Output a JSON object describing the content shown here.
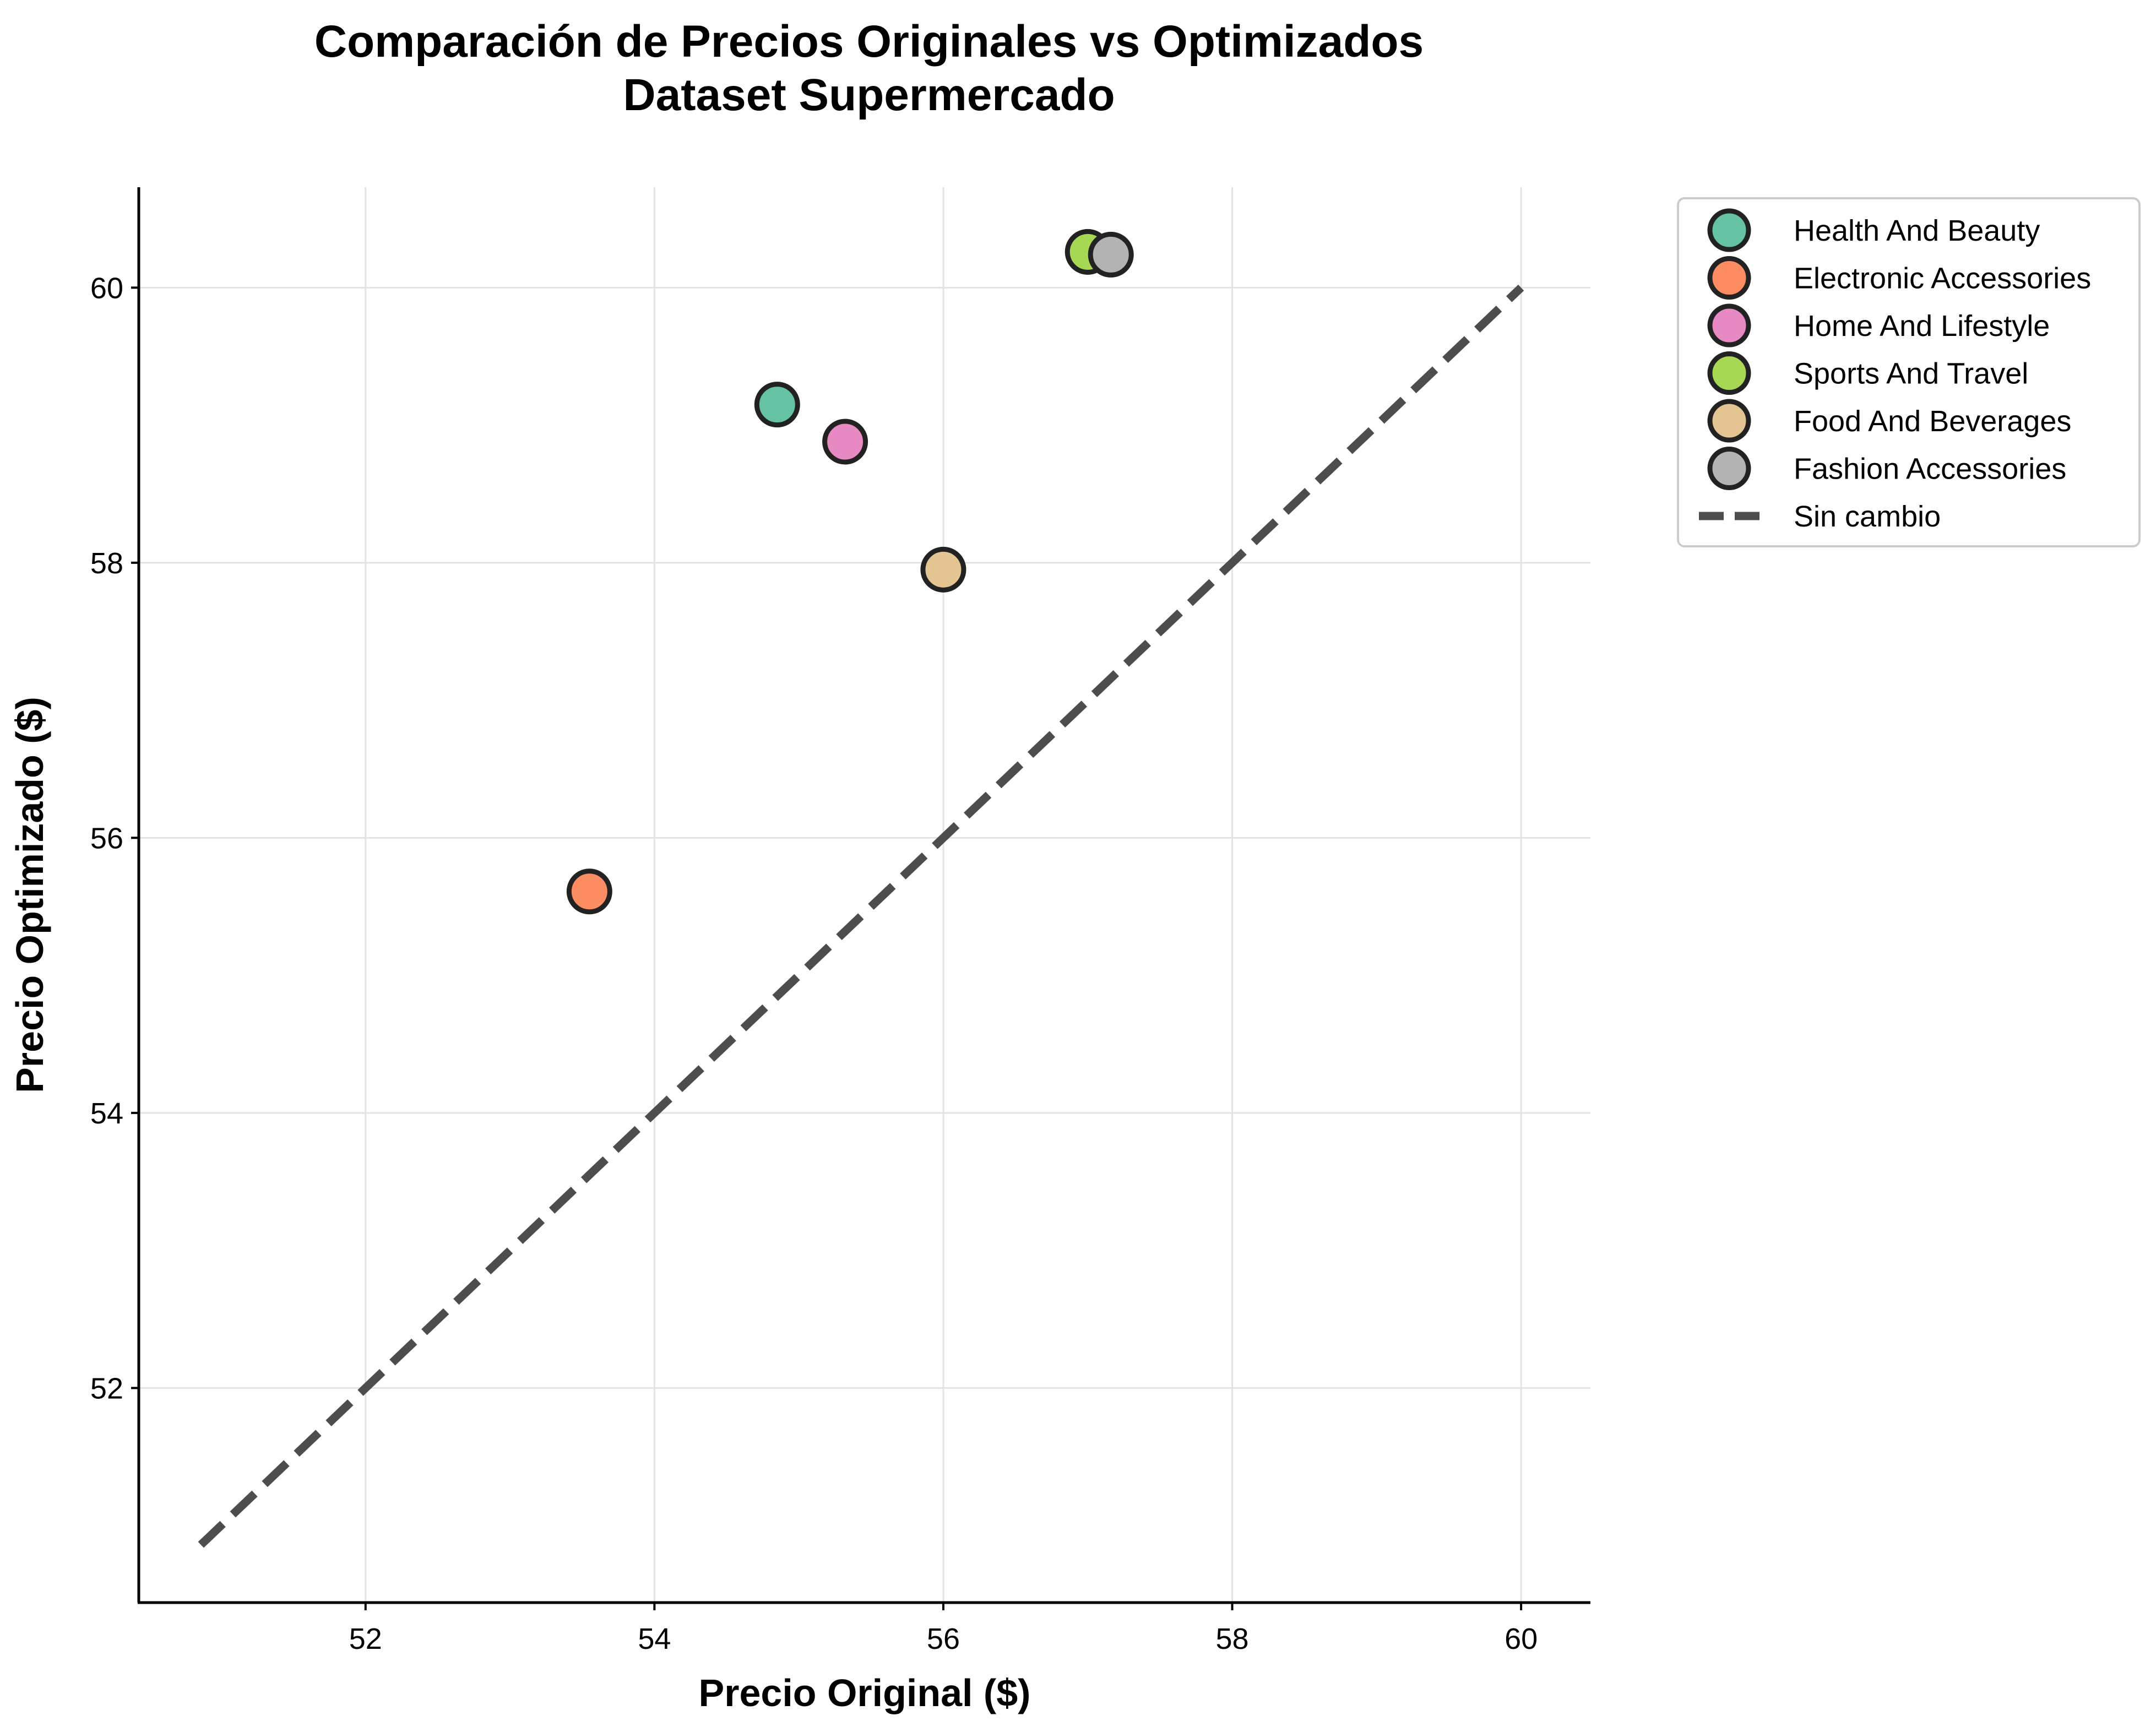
{
  "chart_data": {
    "type": "scatter",
    "title": [
      "Comparación de Precios Originales vs Optimizados",
      "Dataset Supermercado"
    ],
    "xlabel": "Precio Original ($)",
    "ylabel": "Precio Optimizado ($)",
    "xlim": [
      50.43,
      60.48
    ],
    "ylim": [
      50.44,
      60.73
    ],
    "xticks": [
      52,
      54,
      56,
      58,
      60
    ],
    "yticks": [
      52,
      54,
      56,
      58,
      60
    ],
    "grid": true,
    "legend_position": "outside-upper-right",
    "series": [
      {
        "name": "Health And Beauty",
        "color": "#66c2a5",
        "x": 54.85,
        "y": 59.15
      },
      {
        "name": "Electronic Accessories",
        "color": "#fc8d62",
        "x": 53.55,
        "y": 55.61
      },
      {
        "name": "Home And Lifestyle",
        "color": "#e78ac3",
        "x": 55.32,
        "y": 58.88
      },
      {
        "name": "Sports And Travel",
        "color": "#a6d854",
        "x": 57.0,
        "y": 60.26
      },
      {
        "name": "Food And Beverages",
        "color": "#e5c494",
        "x": 56.0,
        "y": 57.95
      },
      {
        "name": "Fashion Accessories",
        "color": "#b3b3b3",
        "x": 57.16,
        "y": 60.24
      }
    ],
    "reference_line": {
      "name": "Sin cambio",
      "color": "#4d4d4d",
      "style": "dashed",
      "from": [
        50.86,
        50.86
      ],
      "to": [
        60.0,
        60.0
      ]
    }
  }
}
